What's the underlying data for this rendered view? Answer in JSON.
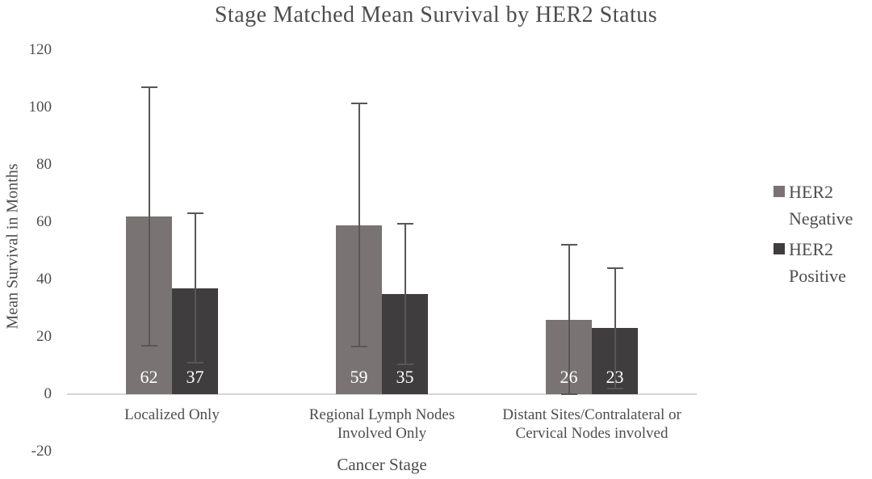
{
  "chart_data": {
    "type": "bar",
    "title": "Stage Matched Mean Survival by HER2 Status",
    "xlabel": "Cancer Stage",
    "ylabel": "Mean Survival in Months",
    "ylim": [
      -20,
      120
    ],
    "yticks": [
      120,
      100,
      80,
      60,
      40,
      20,
      0,
      -20
    ],
    "grid": false,
    "legend_position": "right",
    "categories": [
      "Localized Only",
      "Regional Lymph Nodes Involved Only",
      "Distant Sites/Contralateral or Cervical Nodes involved"
    ],
    "category_lines": [
      [
        "Localized Only"
      ],
      [
        "Regional Lymph Nodes",
        "Involved Only"
      ],
      [
        "Distant Sites/Contralateral or",
        "Cervical Nodes involved"
      ]
    ],
    "series": [
      {
        "name": "HER2 Negative",
        "legend_lines": [
          "HER2",
          "Negative"
        ],
        "color": "#7a7374",
        "values": [
          62,
          59,
          26
        ],
        "error_high": [
          107,
          101.5,
          52
        ],
        "error_low": [
          17,
          16.5,
          0
        ]
      },
      {
        "name": "HER2 Positive",
        "legend_lines": [
          "HER2",
          "Positive"
        ],
        "color": "#403d3e",
        "values": [
          37,
          35,
          23
        ],
        "error_high": [
          63,
          59.5,
          44
        ],
        "error_low": [
          11,
          10.5,
          2
        ]
      }
    ],
    "colors": {
      "axis_line": "#d6d6d6",
      "error_bar": "#595657",
      "text": "#4f4c4d",
      "data_label_text": "#ffffff"
    }
  }
}
